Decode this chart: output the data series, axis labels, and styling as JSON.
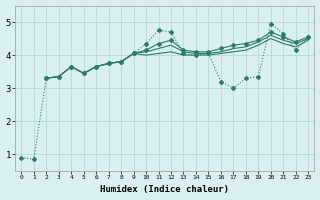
{
  "xlabel": "Humidex (Indice chaleur)",
  "bg_color": "#daf0f0",
  "grid_color": "#b8d8d8",
  "line_color": "#2d7a6e",
  "xlim": [
    -0.5,
    23.5
  ],
  "ylim": [
    0.5,
    5.5
  ],
  "yticks": [
    1,
    2,
    3,
    4,
    5
  ],
  "xticks": [
    0,
    1,
    2,
    3,
    4,
    5,
    6,
    7,
    8,
    9,
    10,
    11,
    12,
    13,
    14,
    15,
    16,
    17,
    18,
    19,
    20,
    21,
    22,
    23
  ],
  "series1_x": [
    0,
    1,
    2,
    3,
    4,
    5,
    6,
    7,
    8,
    9,
    10,
    11,
    12,
    13,
    14,
    15,
    16,
    17,
    18,
    19,
    20,
    21,
    22,
    23
  ],
  "series1_y": [
    0.9,
    0.85,
    3.3,
    3.35,
    3.65,
    3.45,
    3.65,
    3.75,
    3.8,
    4.05,
    4.35,
    4.75,
    4.7,
    4.05,
    4.0,
    4.05,
    3.2,
    3.0,
    3.3,
    3.35,
    4.95,
    4.65,
    4.15,
    4.55
  ],
  "series2_x": [
    2,
    3,
    4,
    5,
    6,
    7,
    8,
    9,
    10,
    11,
    12,
    13,
    14,
    15,
    16,
    17,
    18,
    19,
    20,
    21,
    22,
    23
  ],
  "series2_y": [
    3.3,
    3.35,
    3.65,
    3.45,
    3.65,
    3.75,
    3.8,
    4.05,
    4.15,
    4.35,
    4.45,
    4.15,
    4.1,
    4.1,
    4.2,
    4.3,
    4.35,
    4.45,
    4.7,
    4.55,
    4.4,
    4.55
  ],
  "series3_x": [
    2,
    3,
    4,
    5,
    6,
    7,
    8,
    9,
    10,
    11,
    12,
    13,
    14,
    15,
    16,
    17,
    18,
    19,
    20,
    21,
    22,
    23
  ],
  "series3_y": [
    3.3,
    3.35,
    3.65,
    3.45,
    3.65,
    3.75,
    3.8,
    4.05,
    4.1,
    4.2,
    4.3,
    4.1,
    4.05,
    4.05,
    4.1,
    4.2,
    4.25,
    4.4,
    4.6,
    4.45,
    4.35,
    4.5
  ],
  "series4_x": [
    2,
    3,
    4,
    5,
    6,
    7,
    8,
    9,
    10,
    11,
    12,
    13,
    14,
    15,
    16,
    17,
    18,
    19,
    20,
    21,
    22,
    23
  ],
  "series4_y": [
    3.3,
    3.35,
    3.65,
    3.45,
    3.65,
    3.75,
    3.8,
    4.05,
    4.0,
    4.05,
    4.1,
    4.0,
    4.0,
    4.0,
    4.05,
    4.1,
    4.15,
    4.3,
    4.5,
    4.35,
    4.25,
    4.45
  ]
}
